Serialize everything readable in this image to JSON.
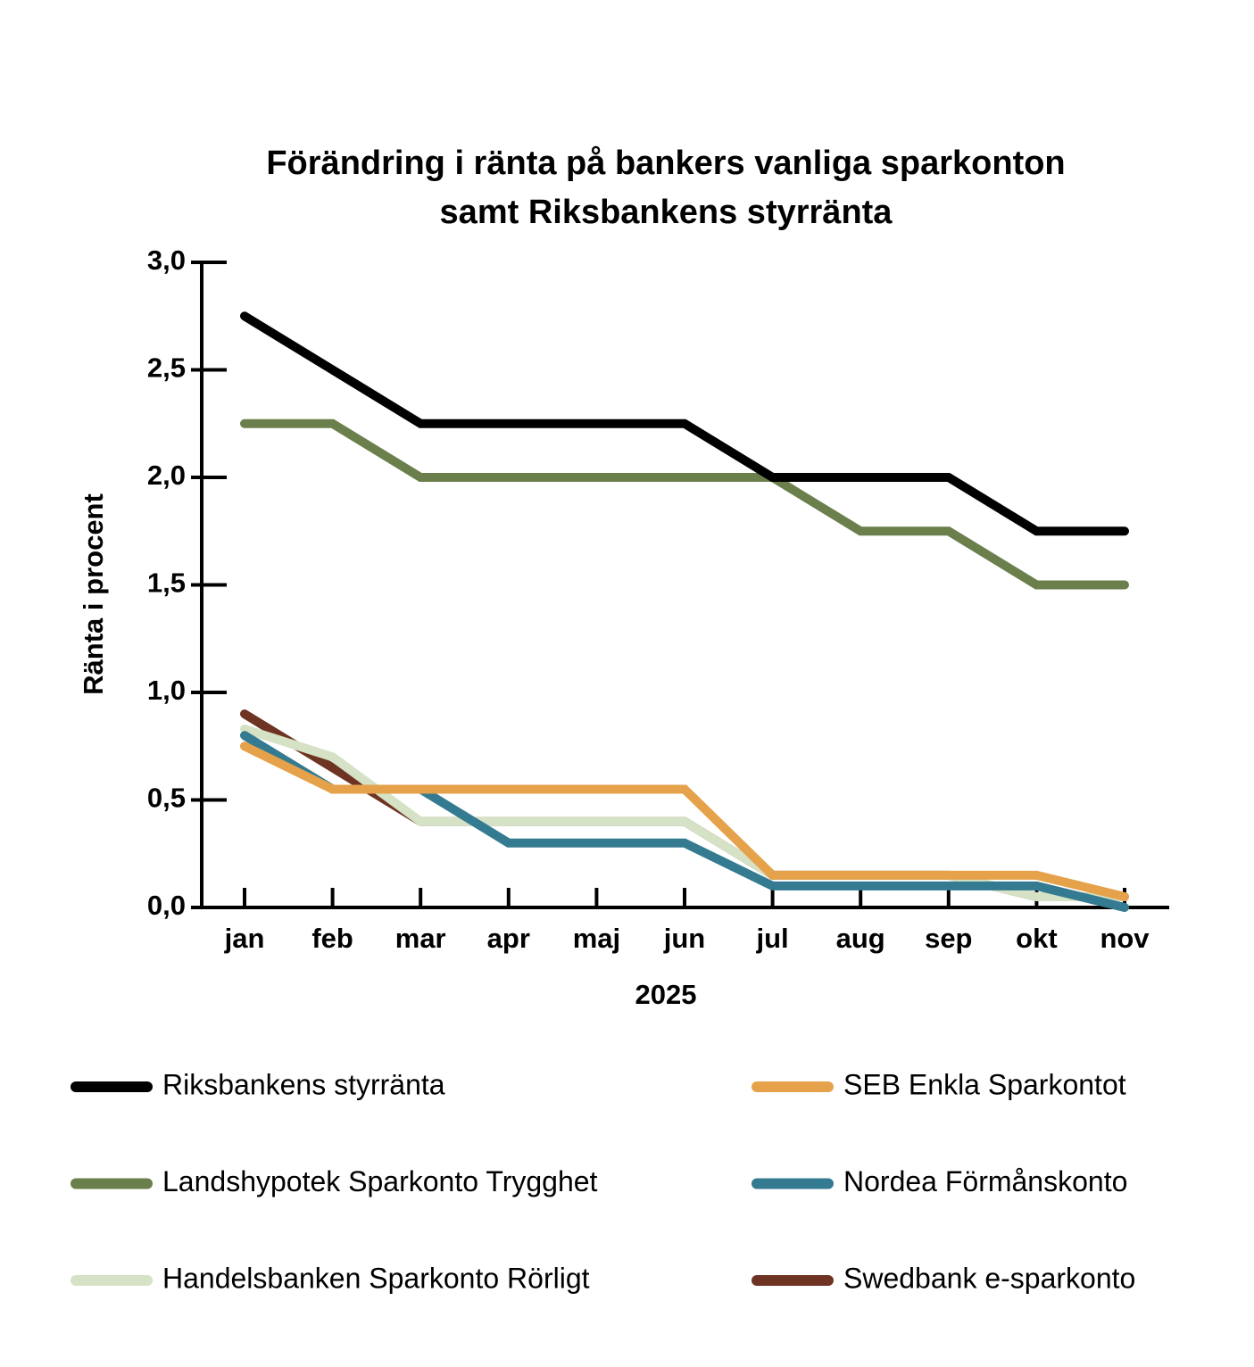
{
  "chart_data": {
    "type": "line",
    "title": [
      "Förändring i ränta på bankers vanliga sparkonton",
      "samt Riksbankens styrränta"
    ],
    "x_label": "2025",
    "y_label": "Ränta i procent",
    "categories": [
      "jan",
      "feb",
      "mar",
      "apr",
      "maj",
      "jun",
      "jul",
      "aug",
      "sep",
      "okt",
      "nov"
    ],
    "series": [
      {
        "name": "Riksbankens styrränta",
        "color": "#000000",
        "values": [
          2.75,
          2.5,
          2.25,
          2.25,
          2.25,
          2.25,
          2.0,
          2.0,
          2.0,
          1.75,
          1.75
        ]
      },
      {
        "name": "SEB Enkla Sparkontot",
        "color": "#e5a24a",
        "values": [
          0.75,
          0.55,
          0.55,
          0.55,
          0.55,
          0.55,
          0.15,
          0.15,
          0.15,
          0.15,
          0.05
        ]
      },
      {
        "name": "Landshypotek Sparkonto Trygghet",
        "color": "#6a7f4b",
        "values": [
          2.25,
          2.25,
          2.0,
          2.0,
          2.0,
          2.0,
          2.0,
          1.75,
          1.75,
          1.5,
          1.5
        ]
      },
      {
        "name": "Nordea Förmånskonto",
        "color": "#347a90",
        "values": [
          0.8,
          0.55,
          0.55,
          0.3,
          0.3,
          0.3,
          0.1,
          0.1,
          0.1,
          0.1,
          0.0
        ]
      },
      {
        "name": "Handelsbanken Sparkonto Rörligt",
        "color": "#d5e2c5",
        "values": [
          0.83,
          0.7,
          0.4,
          0.4,
          0.4,
          0.4,
          0.15,
          0.15,
          0.15,
          0.05,
          0.05
        ]
      },
      {
        "name": "Swedbank e-sparkonto",
        "color": "#6e3322",
        "values": [
          0.9,
          0.65,
          0.4,
          0.4,
          0.4,
          0.4,
          0.15,
          0.15,
          0.15,
          0.05,
          0.05
        ]
      }
    ],
    "ylim": [
      0,
      3
    ],
    "yticks": [
      {
        "value": 0,
        "label": "0,0"
      },
      {
        "value": 0.5,
        "label": "0,5"
      },
      {
        "value": 1,
        "label": "1,0"
      },
      {
        "value": 1.5,
        "label": "1,5"
      },
      {
        "value": 2,
        "label": "2,0"
      },
      {
        "value": 2.5,
        "label": "2,5"
      },
      {
        "value": 3,
        "label": "3,0"
      }
    ]
  }
}
